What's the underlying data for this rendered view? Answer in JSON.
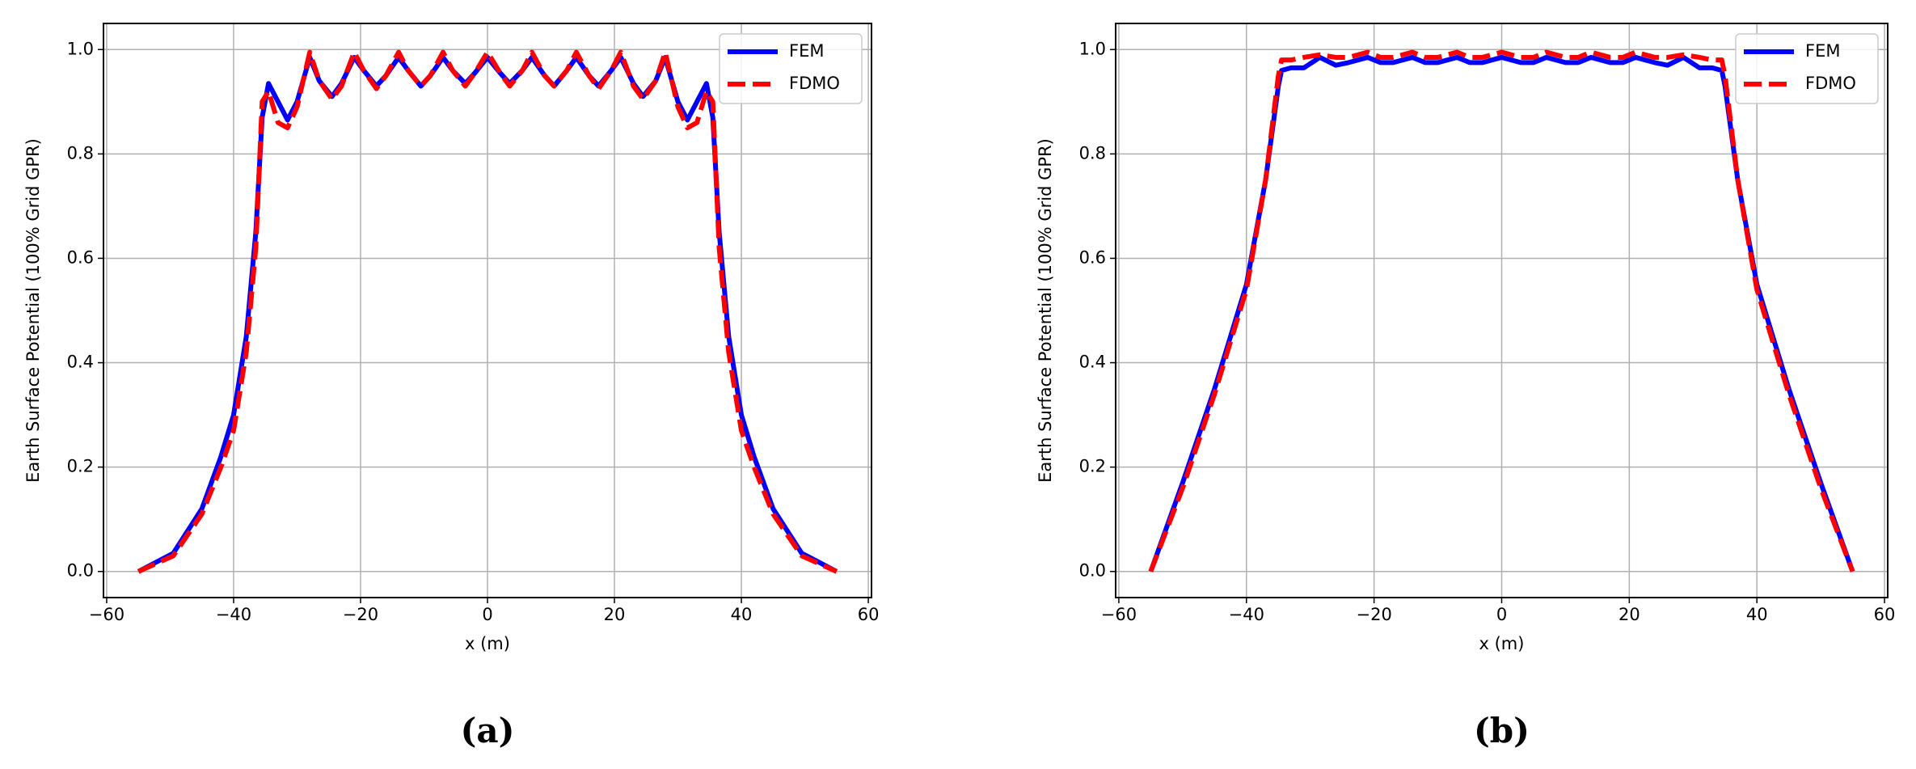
{
  "chart_data": [
    {
      "type": "line",
      "caption": "(a)",
      "x_label": "x (m)",
      "y_label": "Earth Surface Potential (100% Grid GPR)",
      "x": [
        -55,
        -49.5,
        -45,
        -42,
        -40,
        -38,
        -36.5,
        -35.5,
        -34.5,
        -33,
        -31.5,
        -30,
        -28,
        -26.5,
        -24.5,
        -23,
        -21,
        -19.5,
        -17.5,
        -16,
        -14,
        -12.5,
        -10.5,
        -9,
        -7,
        -5.5,
        -3.5,
        -2,
        0,
        2,
        3.5,
        5.5,
        7,
        9,
        10.5,
        12.5,
        14,
        16,
        17.5,
        19.5,
        21,
        23,
        24.5,
        26.5,
        28,
        30,
        31.5,
        33,
        34.5,
        35.5,
        36.5,
        38,
        40,
        42,
        45,
        49.5,
        55
      ],
      "series": [
        {
          "name": "FEM",
          "color": "#0000ff",
          "dashed": false,
          "values": [
            0,
            0.035,
            0.12,
            0.22,
            0.3,
            0.45,
            0.65,
            0.87,
            0.935,
            0.9,
            0.865,
            0.9,
            0.985,
            0.94,
            0.91,
            0.935,
            0.985,
            0.96,
            0.93,
            0.95,
            0.985,
            0.96,
            0.93,
            0.95,
            0.985,
            0.96,
            0.935,
            0.955,
            0.985,
            0.955,
            0.935,
            0.96,
            0.985,
            0.95,
            0.93,
            0.96,
            0.985,
            0.95,
            0.93,
            0.96,
            0.985,
            0.935,
            0.91,
            0.94,
            0.985,
            0.9,
            0.865,
            0.9,
            0.935,
            0.87,
            0.65,
            0.45,
            0.3,
            0.22,
            0.12,
            0.035,
            0
          ]
        },
        {
          "name": "FDMO",
          "color": "#ff0000",
          "dashed": true,
          "values": [
            0,
            0.03,
            0.11,
            0.2,
            0.27,
            0.42,
            0.62,
            0.9,
            0.92,
            0.86,
            0.85,
            0.89,
            0.995,
            0.94,
            0.905,
            0.93,
            0.995,
            0.96,
            0.925,
            0.95,
            0.995,
            0.96,
            0.93,
            0.95,
            0.995,
            0.96,
            0.93,
            0.955,
            0.995,
            0.955,
            0.93,
            0.96,
            0.995,
            0.95,
            0.93,
            0.96,
            0.995,
            0.95,
            0.925,
            0.96,
            0.995,
            0.93,
            0.905,
            0.94,
            0.995,
            0.89,
            0.85,
            0.86,
            0.92,
            0.9,
            0.62,
            0.42,
            0.27,
            0.2,
            0.11,
            0.03,
            0
          ]
        }
      ],
      "xlim": [
        -60.5,
        60.5
      ],
      "ylim": [
        -0.05,
        1.05
      ],
      "xticks": [
        {
          "value": -60,
          "label": "−60"
        },
        {
          "value": -40,
          "label": "−40"
        },
        {
          "value": -20,
          "label": "−20"
        },
        0,
        20,
        40,
        60
      ],
      "yticks": [
        {
          "value": 0,
          "label": "0.0"
        },
        0.2,
        0.4,
        0.6,
        0.8,
        {
          "value": 1,
          "label": "1.0"
        }
      ],
      "grid": true,
      "legend": "upper right"
    },
    {
      "type": "line",
      "caption": "(b)",
      "x_label": "x (m)",
      "y_label": "Earth Surface Potential (100% Grid GPR)",
      "x": [
        -55,
        -50,
        -45,
        -40,
        -37,
        -35,
        -34.5,
        -33,
        -31,
        -28.5,
        -26,
        -24,
        -21,
        -19,
        -17,
        -14,
        -12,
        -10,
        -7,
        -5,
        -3,
        0,
        3,
        5,
        7,
        10,
        12,
        14,
        17,
        19,
        21,
        24,
        26,
        28.5,
        31,
        33,
        34.5,
        35,
        37,
        40,
        45,
        50,
        55
      ],
      "series": [
        {
          "name": "FEM",
          "color": "#0000ff",
          "dashed": false,
          "values": [
            0,
            0.17,
            0.35,
            0.55,
            0.75,
            0.93,
            0.96,
            0.965,
            0.965,
            0.985,
            0.97,
            0.975,
            0.985,
            0.975,
            0.975,
            0.985,
            0.975,
            0.975,
            0.985,
            0.975,
            0.975,
            0.985,
            0.975,
            0.975,
            0.985,
            0.975,
            0.975,
            0.985,
            0.975,
            0.975,
            0.985,
            0.975,
            0.97,
            0.985,
            0.965,
            0.965,
            0.96,
            0.93,
            0.75,
            0.55,
            0.35,
            0.17,
            0
          ]
        },
        {
          "name": "FDMO",
          "color": "#ff0000",
          "dashed": true,
          "values": [
            0,
            0.16,
            0.34,
            0.54,
            0.75,
            0.95,
            0.98,
            0.98,
            0.985,
            0.99,
            0.985,
            0.985,
            0.995,
            0.985,
            0.985,
            0.995,
            0.985,
            0.985,
            0.995,
            0.985,
            0.985,
            0.995,
            0.985,
            0.985,
            0.995,
            0.985,
            0.985,
            0.995,
            0.985,
            0.985,
            0.995,
            0.985,
            0.985,
            0.99,
            0.985,
            0.98,
            0.98,
            0.95,
            0.75,
            0.54,
            0.34,
            0.16,
            0
          ]
        }
      ],
      "xlim": [
        -60.5,
        60.5
      ],
      "ylim": [
        -0.05,
        1.05
      ],
      "xticks": [
        {
          "value": -60,
          "label": "−60"
        },
        {
          "value": -40,
          "label": "−40"
        },
        {
          "value": -20,
          "label": "−20"
        },
        0,
        20,
        40,
        60
      ],
      "yticks": [
        {
          "value": 0,
          "label": "0.0"
        },
        0.2,
        0.4,
        0.6,
        0.8,
        {
          "value": 1,
          "label": "1.0"
        }
      ],
      "grid": true,
      "legend": "upper right"
    }
  ]
}
